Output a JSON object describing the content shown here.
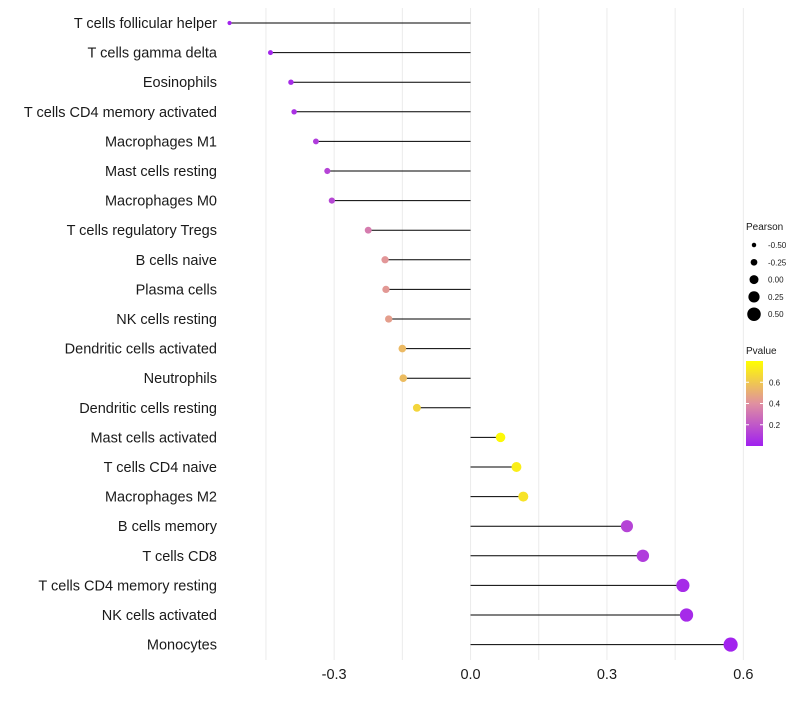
{
  "chart_data": {
    "type": "lollipop",
    "title": "",
    "xlabel": "",
    "ylabel": "",
    "xlim": [
      -0.54,
      0.63
    ],
    "x_ticks": [
      -0.3,
      0.0,
      0.3,
      0.6
    ],
    "x_tick_labels": [
      "-0.3",
      "0.0",
      "0.3",
      "0.6"
    ],
    "grid": true,
    "categories": [
      "T cells follicular helper",
      "T cells gamma delta",
      "Eosinophils",
      "T cells CD4 memory activated",
      "Macrophages M1",
      "Mast cells resting",
      "Macrophages M0",
      "T cells regulatory  Tregs ",
      "B cells naive",
      "Plasma cells",
      "NK cells resting",
      "Dendritic cells activated",
      "Neutrophils",
      "Dendritic cells resting",
      "Mast cells activated",
      "T cells CD4 naive",
      "Macrophages M2",
      "B cells memory",
      "T cells CD8",
      "T cells CD4 memory resting",
      "NK cells activated",
      "Monocytes"
    ],
    "pearson": [
      -0.53,
      -0.44,
      -0.395,
      -0.388,
      -0.34,
      -0.315,
      -0.305,
      -0.225,
      -0.188,
      -0.186,
      -0.18,
      -0.15,
      -0.148,
      -0.118,
      0.066,
      0.101,
      0.116,
      0.344,
      0.379,
      0.467,
      0.475,
      0.572
    ],
    "pvalue": [
      0.01,
      0.02,
      0.04,
      0.06,
      0.1,
      0.13,
      0.14,
      0.33,
      0.42,
      0.43,
      0.45,
      0.55,
      0.56,
      0.65,
      0.78,
      0.74,
      0.7,
      0.13,
      0.1,
      0.04,
      0.035,
      0.01
    ],
    "size_legend": {
      "title": "Pearson",
      "values": [
        -0.5,
        -0.25,
        0.0,
        0.25,
        0.5
      ],
      "labels": [
        "-0.50",
        "-0.25",
        "0.00",
        "0.25",
        "0.50"
      ]
    },
    "color_legend": {
      "title": "Pvalue",
      "range": [
        0.0,
        0.8
      ],
      "tick_values": [
        0.2,
        0.4,
        0.6
      ],
      "tick_labels": [
        "0.2",
        "0.4",
        "0.6"
      ],
      "low_color": "#a020f0",
      "mid_color": "#e090a0",
      "high_color": "#ffff00"
    },
    "segment_color": "#000000",
    "grid_color": "#ebebeb"
  }
}
